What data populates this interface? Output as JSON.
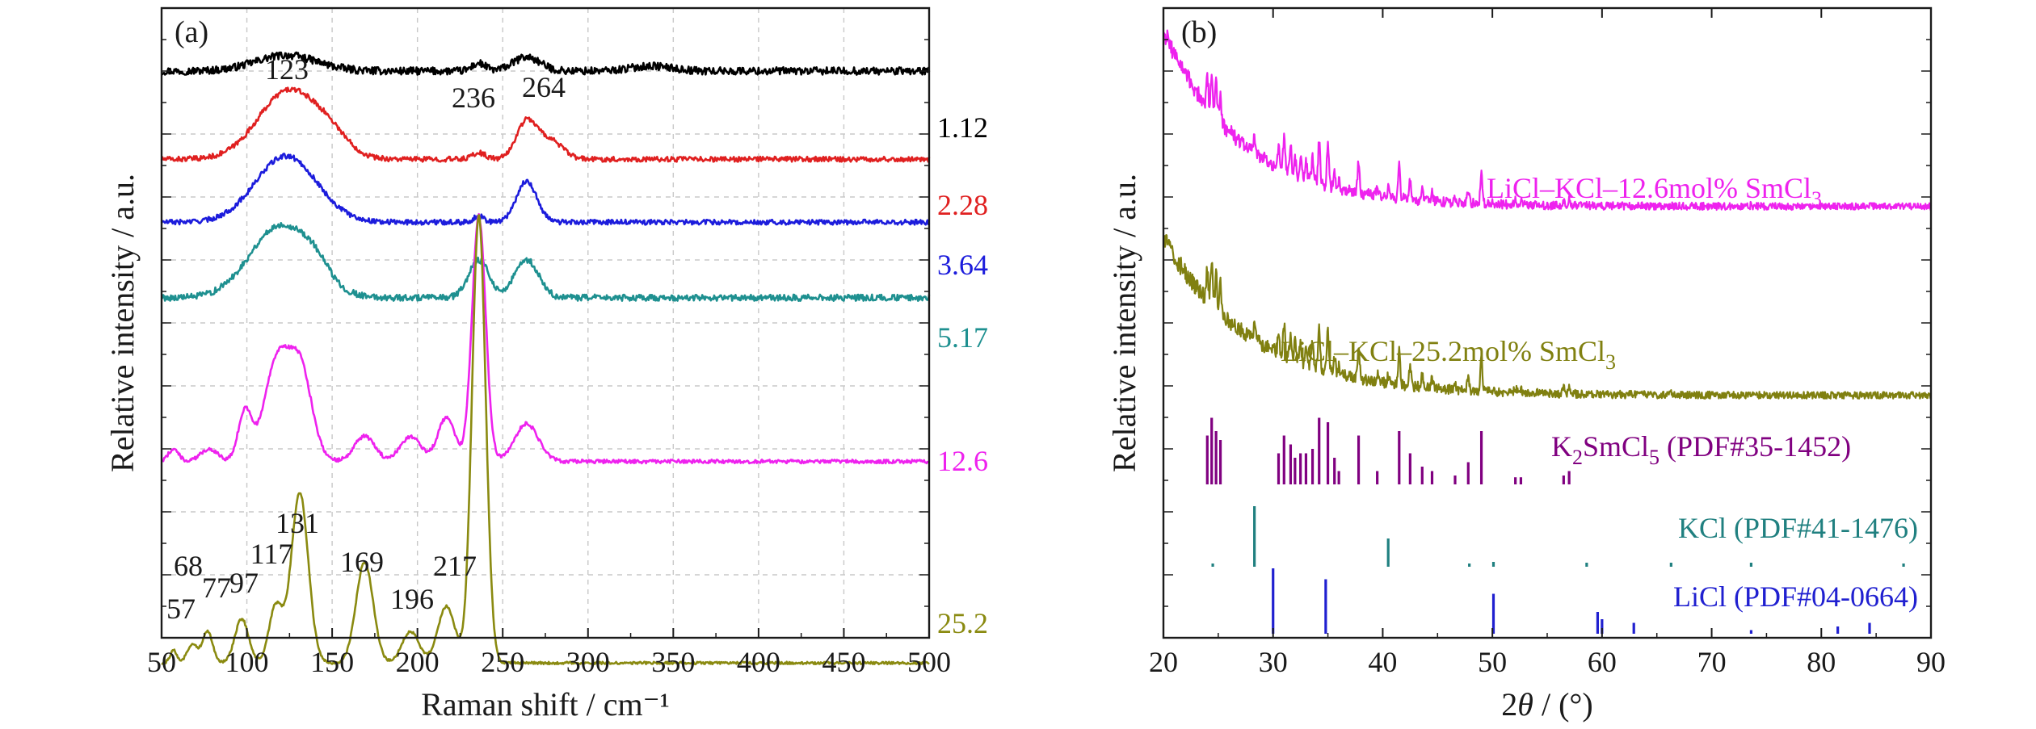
{
  "chart_data": [
    {
      "type": "line",
      "panel": "(a)",
      "xlabel": "Raman shift / cm⁻¹",
      "ylabel": "Relative intensity / a.u.",
      "xlim": [
        50,
        500
      ],
      "xticks": [
        50,
        100,
        150,
        200,
        250,
        300,
        350,
        400,
        450,
        500
      ],
      "grid": true,
      "series": [
        {
          "name": "1.12",
          "color": "#000000",
          "offset": 0.9,
          "noise": 0.006,
          "peaks": [
            [
              123,
              18,
              0.025
            ],
            [
              236,
              4,
              0.012
            ],
            [
              264,
              8,
              0.022
            ],
            [
              337,
              12,
              0.008
            ]
          ]
        },
        {
          "name": "2.28",
          "color": "#e02020",
          "offset": 0.76,
          "noise": 0.004,
          "peaks": [
            [
              125,
              18,
              0.11
            ],
            [
              150,
              10,
              0.02
            ],
            [
              236,
              4,
              0.01
            ],
            [
              264,
              6,
              0.06
            ],
            [
              278,
              7,
              0.03
            ]
          ]
        },
        {
          "name": "3.64",
          "color": "#1c1cdc",
          "offset": 0.66,
          "noise": 0.004,
          "peaks": [
            [
              123,
              18,
              0.105
            ],
            [
              236,
              3,
              0.01
            ],
            [
              264,
              6,
              0.065
            ]
          ]
        },
        {
          "name": "5.17",
          "color": "#1e9090",
          "offset": 0.54,
          "noise": 0.005,
          "peaks": [
            [
              120,
              18,
              0.115
            ],
            [
              140,
              8,
              0.02
            ],
            [
              236,
              6,
              0.06
            ],
            [
              264,
              7,
              0.06
            ]
          ]
        },
        {
          "name": "12.6",
          "color": "#ee22ee",
          "offset": 0.28,
          "noise": 0.003,
          "peaks": [
            [
              57,
              3,
              0.02
            ],
            [
              78,
              5,
              0.02
            ],
            [
              99,
              4,
              0.08
            ],
            [
              117,
              7,
              0.15
            ],
            [
              131,
              7,
              0.15
            ],
            [
              169,
              6,
              0.04
            ],
            [
              196,
              6,
              0.04
            ],
            [
              217,
              5,
              0.07
            ],
            [
              236,
              4,
              0.39
            ],
            [
              264,
              7,
              0.06
            ]
          ]
        },
        {
          "name": "25.2",
          "color": "#8a8a10",
          "offset": -0.04,
          "noise": 0.002,
          "peaks": [
            [
              57,
              2,
              0.02
            ],
            [
              68,
              3,
              0.03
            ],
            [
              77,
              3,
              0.05
            ],
            [
              97,
              4,
              0.07
            ],
            [
              117,
              4,
              0.09
            ],
            [
              131,
              5,
              0.27
            ],
            [
              169,
              5,
              0.16
            ],
            [
              196,
              5,
              0.05
            ],
            [
              217,
              5,
              0.09
            ],
            [
              236,
              4,
              0.71
            ]
          ]
        }
      ],
      "annotations": [
        "123",
        "236",
        "264",
        "131",
        "117",
        "169",
        "217",
        "68",
        "77",
        "97",
        "57",
        "196"
      ]
    },
    {
      "type": "line",
      "panel": "(b)",
      "xlabel_prefix": "2",
      "xlabel_var": "θ",
      "xlabel_suffix": " / (°)",
      "ylabel": "Relative intensity / a.u.",
      "xlim": [
        20,
        90
      ],
      "xticks": [
        20,
        30,
        40,
        50,
        60,
        70,
        80,
        90
      ],
      "grid": false,
      "series": [
        {
          "name_main": "LiCl–KCl–12.6mol% SmCl",
          "name_sub": "3",
          "color": "#ee22ee"
        },
        {
          "name_main": "LiCl–KCl–25.2mol% SmCl",
          "name_sub": "3",
          "color": "#808010"
        }
      ],
      "reference_patterns": [
        {
          "name_pre": "K",
          "name_sub": "2",
          "name_post": "SmCl",
          "name_sub2": "5",
          "name_tail": " (PDF#35-1452)",
          "color": "#800080",
          "lines": [
            [
              24.0,
              0.55
            ],
            [
              24.4,
              0.75
            ],
            [
              24.8,
              0.6
            ],
            [
              25.2,
              0.5
            ],
            [
              30.5,
              0.35
            ],
            [
              31.0,
              0.55
            ],
            [
              31.6,
              0.45
            ],
            [
              32.0,
              0.3
            ],
            [
              32.5,
              0.35
            ],
            [
              33.0,
              0.35
            ],
            [
              33.6,
              0.4
            ],
            [
              34.2,
              0.75
            ],
            [
              35.0,
              0.7
            ],
            [
              35.6,
              0.3
            ],
            [
              36.0,
              0.15
            ],
            [
              37.8,
              0.55
            ],
            [
              39.5,
              0.15
            ],
            [
              41.5,
              0.6
            ],
            [
              42.5,
              0.35
            ],
            [
              43.6,
              0.2
            ],
            [
              44.5,
              0.15
            ],
            [
              46.6,
              0.1
            ],
            [
              47.8,
              0.25
            ],
            [
              49.0,
              0.6
            ],
            [
              52.1,
              0.08
            ],
            [
              52.6,
              0.08
            ],
            [
              56.5,
              0.1
            ],
            [
              57.0,
              0.15
            ]
          ]
        },
        {
          "name": "KCl (PDF#41-1476)",
          "color": "#208080",
          "lines": [
            [
              24.5,
              0.03
            ],
            [
              28.3,
              0.75
            ],
            [
              40.5,
              0.35
            ],
            [
              47.9,
              0.03
            ],
            [
              50.1,
              0.06
            ],
            [
              58.6,
              0.05
            ],
            [
              66.3,
              0.05
            ],
            [
              73.6,
              0.05
            ],
            [
              87.5,
              0.03
            ]
          ]
        },
        {
          "name": "LiCl (PDF#04-0664)",
          "color": "#2020d0",
          "lines": [
            [
              30.0,
              0.9
            ],
            [
              34.8,
              0.75
            ],
            [
              50.1,
              0.55
            ],
            [
              59.6,
              0.3
            ],
            [
              60.0,
              0.2
            ],
            [
              62.9,
              0.15
            ],
            [
              73.6,
              0.05
            ],
            [
              81.5,
              0.1
            ],
            [
              84.4,
              0.15
            ]
          ]
        }
      ]
    }
  ]
}
